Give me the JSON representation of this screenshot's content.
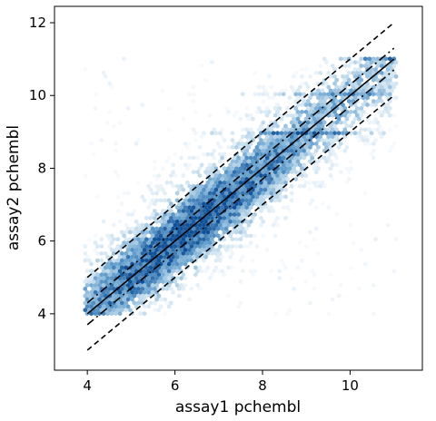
{
  "chart_data": {
    "type": "scatter",
    "subtype": "hexbin-density",
    "xlabel": "assay1 pchembl",
    "ylabel": "assay2 pchembl",
    "xlim": [
      3.25,
      11.65
    ],
    "ylim": [
      2.45,
      12.45
    ],
    "x_ticks": [
      4,
      6,
      8,
      10
    ],
    "y_ticks": [
      4,
      6,
      8,
      10,
      12
    ],
    "x_tick_labels": [
      "4",
      "6",
      "8",
      "10"
    ],
    "y_tick_labels": [
      "4",
      "6",
      "8",
      "10",
      "12"
    ],
    "grid": false,
    "colormap": "Blues",
    "density": {
      "x_range": [
        4,
        11
      ],
      "y_range": [
        4,
        11
      ],
      "center_line": "y = x",
      "horizontal_bands_y": [
        9,
        10,
        11
      ]
    },
    "reference_lines": [
      {
        "style": "solid",
        "offset": 0,
        "x": [
          4,
          11
        ],
        "y": [
          4,
          11
        ],
        "color": "#000000"
      },
      {
        "style": "dashdot",
        "offset": 0.3,
        "x": [
          4,
          11
        ],
        "y": [
          4.3,
          11.3
        ],
        "color": "#000000"
      },
      {
        "style": "dashdot",
        "offset": -0.3,
        "x": [
          4,
          11
        ],
        "y": [
          3.7,
          10.7
        ],
        "color": "#000000"
      },
      {
        "style": "dashed",
        "offset": 1,
        "x": [
          4,
          11
        ],
        "y": [
          5,
          12
        ],
        "color": "#000000"
      },
      {
        "style": "dashed",
        "offset": -1,
        "x": [
          4,
          11
        ],
        "y": [
          3,
          10
        ],
        "color": "#000000"
      }
    ]
  }
}
